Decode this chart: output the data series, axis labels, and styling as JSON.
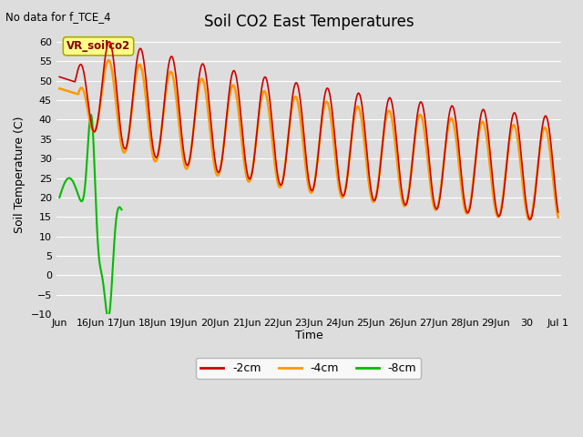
{
  "title": "Soil CO2 East Temperatures",
  "ylabel": "Soil Temperature (C)",
  "xlabel": "Time",
  "no_data_text": "No data for f_TCE_4",
  "annotation_text": "VR_soilco2",
  "ylim": [
    -10,
    62
  ],
  "yticks": [
    -10,
    -5,
    0,
    5,
    10,
    15,
    20,
    25,
    30,
    35,
    40,
    45,
    50,
    55,
    60
  ],
  "colors": {
    "2cm": "#cc0000",
    "4cm": "#ff9900",
    "8cm": "#00bb00"
  },
  "legend": [
    {
      "label": "-2cm",
      "color": "#cc0000"
    },
    {
      "label": "-4cm",
      "color": "#ff9900"
    },
    {
      "label": "-8cm",
      "color": "#00bb00"
    }
  ],
  "background_color": "#dddddd",
  "plot_bg_color": "#dddddd",
  "grid_color": "#ffffff",
  "annotation_box_color": "#ffff88",
  "annotation_text_color": "#880000",
  "figsize": [
    6.4,
    4.8
  ],
  "dpi": 100
}
